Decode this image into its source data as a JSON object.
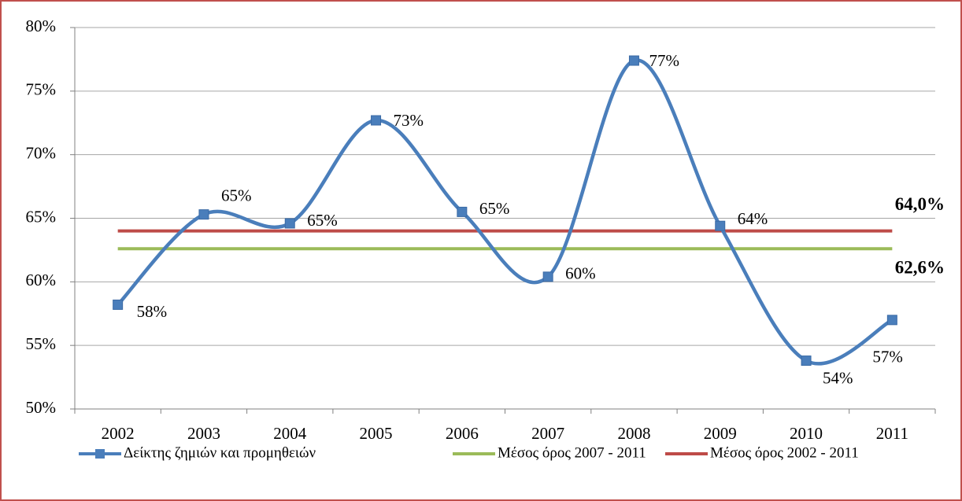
{
  "chart_data": {
    "type": "line",
    "categories": [
      "2002",
      "2003",
      "2004",
      "2005",
      "2006",
      "2007",
      "2008",
      "2009",
      "2010",
      "2011"
    ],
    "series": [
      {
        "name": "Δείκτης ζημιών και προμηθειών",
        "color": "#4a7ebb",
        "values": [
          58.2,
          65.3,
          64.6,
          72.7,
          65.5,
          60.4,
          77.4,
          64.4,
          53.8,
          57.0
        ],
        "value_labels": [
          "58%",
          "65%",
          "65%",
          "73%",
          "65%",
          "60%",
          "77%",
          "64%",
          "54%",
          "57%"
        ]
      },
      {
        "name": "Μέσος όρος 2007 - 2011",
        "color": "#9bbb59",
        "value": 62.6,
        "value_label": "62,6%"
      },
      {
        "name": "Μέσος όρος 2002 - 2011",
        "color": "#be4b48",
        "value": 64.0,
        "value_label": "64,0%"
      }
    ],
    "ylim": [
      50,
      80
    ],
    "yticks": [
      {
        "value": 50,
        "label": "50%"
      },
      {
        "value": 55,
        "label": "55%"
      },
      {
        "value": 60,
        "label": "60%"
      },
      {
        "value": 65,
        "label": "65%"
      },
      {
        "value": 70,
        "label": "70%"
      },
      {
        "value": 75,
        "label": "75%"
      },
      {
        "value": 80,
        "label": "80%"
      }
    ],
    "grid": true,
    "legend": "bottom"
  }
}
